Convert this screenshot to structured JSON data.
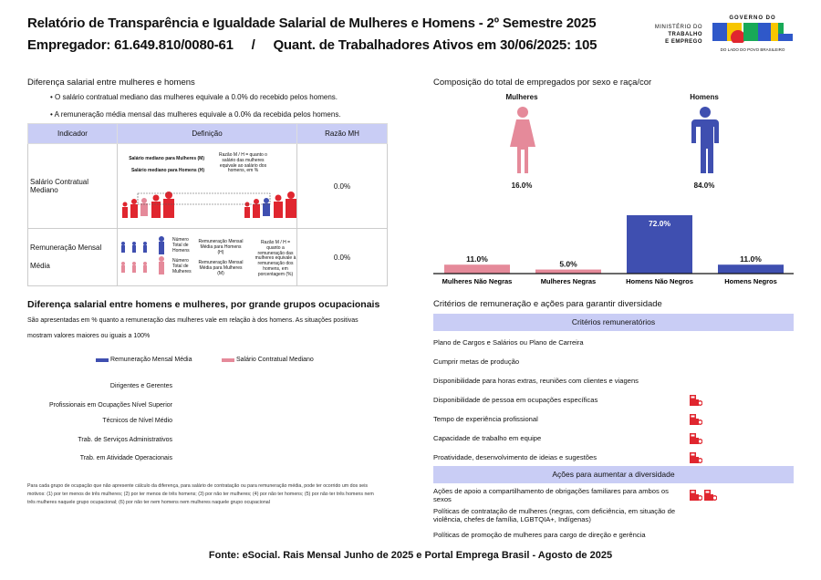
{
  "header": {
    "title": "Relatório de Transparência e Igualdade Salarial de Mulheres e Homens - 2º Semestre 2025",
    "subtitle": "Empregador: 61.649.810/0080-61     /     Quant. de Trabalhadores Ativos em 30/06/2025: 105",
    "logo": {
      "ministry": [
        "MINISTÉRIO DO",
        "TRABALHO",
        "E EMPREGO"
      ],
      "gov_top": "GOVERNO DO",
      "gov_brand": "BRASIL",
      "gov_tag": "DO LADO DO POVO BRASILEIRO"
    }
  },
  "salary_gap": {
    "title": "Diferença salarial entre mulheres e homens",
    "bullets": [
      "• O salário contratual mediano das mulheres equivale a 0.0% do recebido pelos homens.",
      "• A remuneração média mensal das mulheres equivale a 0.0% da recebida pelos homens."
    ],
    "table": {
      "headers": [
        "Indicador",
        "Definição",
        "Razão MH"
      ],
      "rows": [
        {
          "indicator": "Salário Contratual Mediano",
          "value": "0.0%",
          "def": {
            "l1": "Salário mediano para Mulheres (M)",
            "l2": "Salário mediano para Homens (H)",
            "note": "Razão M / H = quanto o salário das mulheres equivale ao salário dos homens, em %"
          }
        },
        {
          "indicator": "Remuneração Mensal Média",
          "value": "0.0%",
          "def": {
            "men_total": "Número Total de Homens",
            "men_result": "Remuneração Mensal Média para Homens (H)",
            "women_total": "Número Total de Mulheres",
            "women_result": "Remuneração Mensal Média para Mulheres (M)",
            "note": "Razão M / H = quanto a remuneração das mulheres equivale à remuneração dos homens, em porcentagem (%)"
          }
        }
      ]
    }
  },
  "composition": {
    "title": "Composição do total de empregados por sexo e raça/cor",
    "women_label": "Mulheres",
    "men_label": "Homens",
    "women_pct": "16.0%",
    "men_pct": "84.0%",
    "colors": {
      "women": "#e58a9a",
      "men": "#3f4fb0"
    }
  },
  "chart_data": {
    "type": "bar",
    "categories": [
      "Mulheres Não Negras",
      "Mulheres Negras",
      "Homens Não Negros",
      "Homens Negros"
    ],
    "values": [
      11.0,
      5.0,
      72.0,
      11.0
    ],
    "labels": [
      "11.0%",
      "5.0%",
      "72.0%",
      "11.0%"
    ],
    "colors": [
      "#e58a9a",
      "#e58a9a",
      "#3f4fb0",
      "#3f4fb0"
    ],
    "ylim": [
      0,
      72
    ],
    "grid": false
  },
  "occupational": {
    "title": "Diferença salarial entre homens e mulheres, por grande grupos ocupacionais",
    "desc1": "São apresentadas em % quanto a remuneração das mulheres vale em relação à dos homens. As situações positivas",
    "desc2": "mostram valores maiores ou iguais a 100%",
    "legend": [
      {
        "label": "Remuneração Mensal Média",
        "color": "#3f4fb0"
      },
      {
        "label": "Salário Contratual Mediano",
        "color": "#e58a9a"
      }
    ],
    "groups": [
      "Dirigentes e Gerentes",
      "Profissionais em Ocupações Nível Superior",
      "Técnicos de Nível Médio",
      "Trab. de Serviços Administrativos",
      "Trab. em Atividade Operacionais"
    ],
    "footnote": "Para cada grupo de ocupação que não apresente cálculo da diferença, para salário de contratação ou para remuneração média, pode ter ocorrido um dos seis motivos: (1) por ter menos de três mulheres; (2) por ter menos de três homens; (3) por não ter mulheres; (4) por não ter homens; (5) por não ter três homens nem três mulheres naquele grupo ocupacional; (6) por não ter nem homens nem mulheres naquele grupo ocupacional"
  },
  "criteria": {
    "title": "Critérios de remuneração e ações para garantir diversidade",
    "criteria_header": "Critérios remuneratórios",
    "criteria_items": [
      {
        "label": "Plano de Cargos e Salários ou Plano de Carreira",
        "icons": 0
      },
      {
        "label": "Cumprir metas de produção",
        "icons": 0
      },
      {
        "label": "Disponibilidade para horas extras, reuniões com clientes e viagens",
        "icons": 0
      },
      {
        "label": "Disponibilidade de pessoa em ocupações específicas",
        "icons": 1
      },
      {
        "label": "Tempo de experiência profissional",
        "icons": 1
      },
      {
        "label": "Capacidade de trabalho em equipe",
        "icons": 1
      },
      {
        "label": "Proatividade, desenvolvimento de ideias e sugestões",
        "icons": 1
      }
    ],
    "actions_header": "Ações para aumentar a diversidade",
    "action_items": [
      {
        "label": "Ações de apoio a compartilhamento de obrigações familiares para ambos os sexos",
        "icons": 2
      },
      {
        "label": "Políticas de contratação de mulheres (negras, com deficiência, em situação de violência, chefes de família, LGBTQIA+, Indígenas)",
        "icons": 0
      },
      {
        "label": "Políticas de promoção de mulheres para cargo de direção e gerência",
        "icons": 0
      }
    ],
    "icon": "company-building-icon",
    "icon_color": "#e0262f"
  },
  "footer": {
    "source": "Fonte: eSocial. Rais Mensal Junho de 2025 e Portal Emprega Brasil - Agosto de 2025"
  }
}
